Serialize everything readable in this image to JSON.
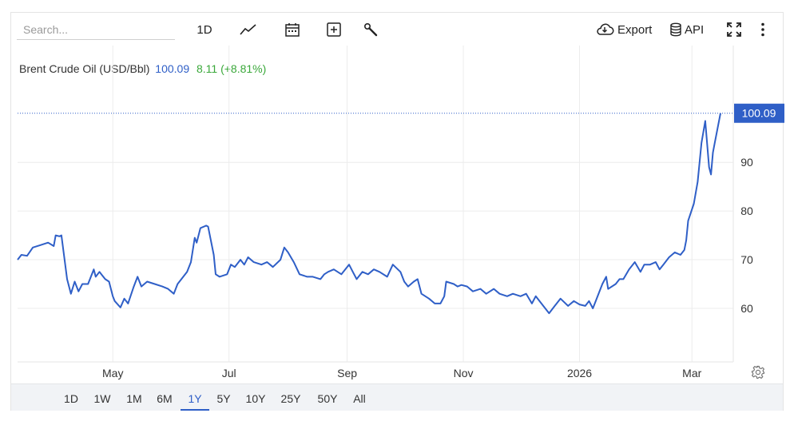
{
  "toolbar": {
    "search_placeholder": "Search...",
    "interval_label": "1D",
    "export_label": "Export",
    "api_label": "API"
  },
  "legend": {
    "name": "Brent Crude Oil (USD/Bbl)",
    "price": "100.09",
    "change": "8.11 (+8.81%)"
  },
  "colors": {
    "line": "#2f5fc7",
    "change_positive": "#3aa83a",
    "price_tag": "#2f5fc7"
  },
  "ranges": {
    "items": [
      "1D",
      "1W",
      "1M",
      "6M",
      "1Y",
      "5Y",
      "10Y",
      "25Y",
      "50Y",
      "All"
    ],
    "active": "1Y"
  },
  "chart_data": {
    "type": "line",
    "title": "Brent Crude Oil (USD/Bbl)",
    "last_value": 100.09,
    "last_value_label": "100.09",
    "ylim": [
      49,
      114
    ],
    "yticks": [
      60,
      70,
      80,
      90
    ],
    "x_start": "2025-03-12",
    "x_end": "2026-03-16",
    "xticks": [
      {
        "date": "2025-05-01",
        "label": "May"
      },
      {
        "date": "2025-07-01",
        "label": "Jul"
      },
      {
        "date": "2025-09-01",
        "label": "Sep"
      },
      {
        "date": "2025-11-01",
        "label": "Nov"
      },
      {
        "date": "2026-01-01",
        "label": "2026"
      },
      {
        "date": "2026-03-01",
        "label": "Mar"
      }
    ],
    "grid": true,
    "series": [
      {
        "points": [
          [
            "2025-03-12",
            70.0
          ],
          [
            "2025-03-14",
            71.0
          ],
          [
            "2025-03-17",
            70.8
          ],
          [
            "2025-03-20",
            72.5
          ],
          [
            "2025-03-24",
            73.0
          ],
          [
            "2025-03-28",
            73.5
          ],
          [
            "2025-03-31",
            72.8
          ],
          [
            "2025-04-01",
            75.0
          ],
          [
            "2025-04-03",
            74.8
          ],
          [
            "2025-04-04",
            75.0
          ],
          [
            "2025-04-07",
            66.0
          ],
          [
            "2025-04-09",
            63.0
          ],
          [
            "2025-04-11",
            65.5
          ],
          [
            "2025-04-13",
            63.5
          ],
          [
            "2025-04-15",
            65.0
          ],
          [
            "2025-04-18",
            65.0
          ],
          [
            "2025-04-21",
            68.0
          ],
          [
            "2025-04-22",
            66.5
          ],
          [
            "2025-04-24",
            67.5
          ],
          [
            "2025-04-27",
            66.0
          ],
          [
            "2025-04-29",
            65.5
          ],
          [
            "2025-05-01",
            62.5
          ],
          [
            "2025-05-02",
            61.5
          ],
          [
            "2025-05-05",
            60.2
          ],
          [
            "2025-05-07",
            62.0
          ],
          [
            "2025-05-09",
            61.0
          ],
          [
            "2025-05-12",
            64.5
          ],
          [
            "2025-05-14",
            66.5
          ],
          [
            "2025-05-16",
            64.5
          ],
          [
            "2025-05-19",
            65.5
          ],
          [
            "2025-05-23",
            65.0
          ],
          [
            "2025-05-27",
            64.5
          ],
          [
            "2025-05-30",
            64.0
          ],
          [
            "2025-06-02",
            63.0
          ],
          [
            "2025-06-04",
            65.0
          ],
          [
            "2025-06-06",
            66.0
          ],
          [
            "2025-06-09",
            67.5
          ],
          [
            "2025-06-11",
            69.5
          ],
          [
            "2025-06-13",
            74.5
          ],
          [
            "2025-06-14",
            73.5
          ],
          [
            "2025-06-16",
            76.5
          ],
          [
            "2025-06-19",
            77.0
          ],
          [
            "2025-06-20",
            76.8
          ],
          [
            "2025-06-23",
            71.0
          ],
          [
            "2025-06-24",
            67.0
          ],
          [
            "2025-06-26",
            66.5
          ],
          [
            "2025-06-30",
            67.0
          ],
          [
            "2025-07-02",
            69.0
          ],
          [
            "2025-07-04",
            68.5
          ],
          [
            "2025-07-07",
            70.0
          ],
          [
            "2025-07-09",
            69.0
          ],
          [
            "2025-07-11",
            70.5
          ],
          [
            "2025-07-14",
            69.5
          ],
          [
            "2025-07-18",
            69.0
          ],
          [
            "2025-07-21",
            69.5
          ],
          [
            "2025-07-24",
            68.5
          ],
          [
            "2025-07-28",
            70.0
          ],
          [
            "2025-07-30",
            72.5
          ],
          [
            "2025-08-01",
            71.5
          ],
          [
            "2025-08-04",
            69.5
          ],
          [
            "2025-08-07",
            67.0
          ],
          [
            "2025-08-11",
            66.5
          ],
          [
            "2025-08-14",
            66.5
          ],
          [
            "2025-08-18",
            66.0
          ],
          [
            "2025-08-20",
            67.0
          ],
          [
            "2025-08-22",
            67.5
          ],
          [
            "2025-08-25",
            68.0
          ],
          [
            "2025-08-27",
            67.5
          ],
          [
            "2025-08-29",
            67.0
          ],
          [
            "2025-09-02",
            69.0
          ],
          [
            "2025-09-04",
            67.5
          ],
          [
            "2025-09-06",
            66.0
          ],
          [
            "2025-09-09",
            67.5
          ],
          [
            "2025-09-12",
            67.0
          ],
          [
            "2025-09-15",
            68.0
          ],
          [
            "2025-09-18",
            67.5
          ],
          [
            "2025-09-22",
            66.5
          ],
          [
            "2025-09-25",
            69.0
          ],
          [
            "2025-09-29",
            67.5
          ],
          [
            "2025-10-01",
            65.5
          ],
          [
            "2025-10-03",
            64.5
          ],
          [
            "2025-10-06",
            65.5
          ],
          [
            "2025-10-08",
            66.0
          ],
          [
            "2025-10-10",
            63.0
          ],
          [
            "2025-10-14",
            62.0
          ],
          [
            "2025-10-17",
            61.0
          ],
          [
            "2025-10-20",
            61.0
          ],
          [
            "2025-10-22",
            62.5
          ],
          [
            "2025-10-23",
            65.5
          ],
          [
            "2025-10-27",
            65.0
          ],
          [
            "2025-10-29",
            64.5
          ],
          [
            "2025-10-31",
            64.8
          ],
          [
            "2025-11-03",
            64.5
          ],
          [
            "2025-11-06",
            63.5
          ],
          [
            "2025-11-10",
            64.0
          ],
          [
            "2025-11-13",
            63.0
          ],
          [
            "2025-11-17",
            64.0
          ],
          [
            "2025-11-20",
            63.0
          ],
          [
            "2025-11-24",
            62.5
          ],
          [
            "2025-11-27",
            63.0
          ],
          [
            "2025-12-01",
            62.5
          ],
          [
            "2025-12-04",
            63.0
          ],
          [
            "2025-12-07",
            61.0
          ],
          [
            "2025-12-09",
            62.5
          ],
          [
            "2025-12-12",
            61.0
          ],
          [
            "2025-12-16",
            59.0
          ],
          [
            "2025-12-19",
            60.5
          ],
          [
            "2025-12-22",
            62.0
          ],
          [
            "2025-12-26",
            60.5
          ],
          [
            "2025-12-29",
            61.5
          ],
          [
            "2026-01-01",
            60.8
          ],
          [
            "2026-01-04",
            60.5
          ],
          [
            "2026-01-06",
            61.5
          ],
          [
            "2026-01-08",
            60.0
          ],
          [
            "2026-01-10",
            62.0
          ],
          [
            "2026-01-13",
            65.0
          ],
          [
            "2026-01-15",
            66.5
          ],
          [
            "2026-01-16",
            64.0
          ],
          [
            "2026-01-20",
            65.0
          ],
          [
            "2026-01-22",
            66.0
          ],
          [
            "2026-01-24",
            66.0
          ],
          [
            "2026-01-27",
            68.0
          ],
          [
            "2026-01-30",
            69.5
          ],
          [
            "2026-02-02",
            67.5
          ],
          [
            "2026-02-04",
            69.0
          ],
          [
            "2026-02-07",
            69.0
          ],
          [
            "2026-02-10",
            69.5
          ],
          [
            "2026-02-12",
            68.0
          ],
          [
            "2026-02-14",
            69.0
          ],
          [
            "2026-02-17",
            70.5
          ],
          [
            "2026-02-20",
            71.5
          ],
          [
            "2026-02-23",
            71.0
          ],
          [
            "2026-02-25",
            72.0
          ],
          [
            "2026-02-26",
            74.0
          ],
          [
            "2026-02-27",
            78.0
          ],
          [
            "2026-03-02",
            81.5
          ],
          [
            "2026-03-04",
            86.0
          ],
          [
            "2026-03-06",
            94.0
          ],
          [
            "2026-03-08",
            98.5
          ],
          [
            "2026-03-10",
            89.0
          ],
          [
            "2026-03-11",
            87.5
          ],
          [
            "2026-03-12",
            92.0
          ],
          [
            "2026-03-13",
            94.0
          ],
          [
            "2026-03-16",
            100.09
          ]
        ]
      }
    ]
  }
}
